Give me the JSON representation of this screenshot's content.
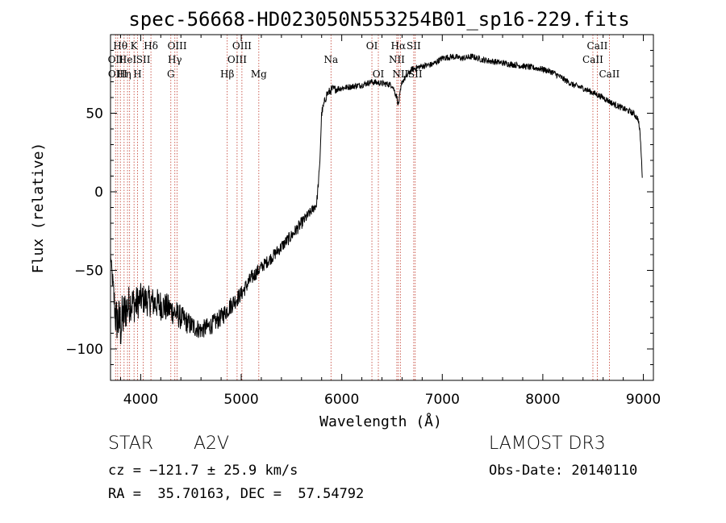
{
  "chart_data": {
    "type": "line",
    "title": "spec-56668-HD023050N553254B01_sp16-229.fits",
    "xlabel": "Wavelength (Å)",
    "ylabel": "Flux (relative)",
    "xlim": [
      3700,
      9100
    ],
    "ylim": [
      -120,
      100
    ],
    "xticks": [
      4000,
      5000,
      6000,
      7000,
      8000,
      9000
    ],
    "yticks": [
      -100,
      -50,
      0,
      50
    ],
    "xtick_labels": [
      "4000",
      "5000",
      "6000",
      "7000",
      "8000",
      "9000"
    ],
    "ytick_labels": [
      "−100",
      "−50",
      "0",
      "50"
    ],
    "grid": false,
    "series": [
      {
        "name": "spectrum",
        "x": [
          3700,
          3750,
          3800,
          3850,
          3900,
          3950,
          4000,
          4100,
          4200,
          4300,
          4400,
          4500,
          4600,
          4700,
          4800,
          4900,
          5000,
          5100,
          5200,
          5300,
          5400,
          5500,
          5600,
          5700,
          5750,
          5780,
          5800,
          5850,
          5900,
          6000,
          6100,
          6200,
          6300,
          6400,
          6500,
          6550,
          6563,
          6600,
          6700,
          6800,
          6900,
          7000,
          7100,
          7200,
          7300,
          7400,
          7500,
          7600,
          7700,
          7800,
          7900,
          8000,
          8100,
          8200,
          8300,
          8400,
          8500,
          8600,
          8700,
          8800,
          8900,
          8950,
          8970,
          8990
        ],
        "y": [
          -40,
          -80,
          -85,
          -75,
          -70,
          -72,
          -68,
          -70,
          -72,
          -75,
          -80,
          -85,
          -88,
          -85,
          -80,
          -72,
          -65,
          -55,
          -48,
          -42,
          -35,
          -28,
          -20,
          -12,
          -8,
          15,
          50,
          62,
          65,
          66,
          67,
          68,
          70,
          69,
          68,
          60,
          55,
          70,
          78,
          80,
          81,
          85,
          86,
          85,
          86,
          84,
          83,
          82,
          81,
          80,
          79,
          78,
          76,
          72,
          68,
          66,
          63,
          60,
          56,
          53,
          50,
          46,
          35,
          10
        ],
        "noise": [
          2,
          14,
          18,
          14,
          12,
          12,
          10,
          10,
          10,
          9,
          8,
          7,
          6,
          6,
          6,
          6,
          5,
          5,
          4,
          4,
          4,
          4,
          4,
          3,
          3,
          3,
          3,
          3,
          3,
          2,
          2,
          2,
          2,
          2,
          2,
          2,
          2,
          2,
          2,
          2,
          2,
          2,
          2,
          2,
          2,
          2,
          2,
          2,
          2,
          2,
          2,
          2,
          2,
          2,
          2,
          2,
          2,
          2,
          2,
          2,
          2,
          2,
          2,
          2
        ]
      }
    ],
    "lines": [
      {
        "w": 3750,
        "label": "OII",
        "row": 1
      },
      {
        "w": 3771,
        "label": "OIII",
        "row": 2
      },
      {
        "w": 3798,
        "label": "Hθ",
        "row": 0
      },
      {
        "w": 3835,
        "label": "Hη",
        "row": 2
      },
      {
        "w": 3869,
        "label": "HeI",
        "row": 1
      },
      {
        "w": 3890,
        "label": "",
        "row": -1
      },
      {
        "w": 3934,
        "label": "K",
        "row": 0
      },
      {
        "w": 3969,
        "label": "H",
        "row": 2
      },
      {
        "w": 4026,
        "label": "SII",
        "row": 1
      },
      {
        "w": 4102,
        "label": "Hδ",
        "row": 0
      },
      {
        "w": 4300,
        "label": "G",
        "row": 2
      },
      {
        "w": 4340,
        "label": "Hγ",
        "row": 1
      },
      {
        "w": 4363,
        "label": "OIII",
        "row": 0
      },
      {
        "w": 4861,
        "label": "Hβ",
        "row": 2
      },
      {
        "w": 4959,
        "label": "OIII",
        "row": 1
      },
      {
        "w": 5007,
        "label": "OIII",
        "row": 0
      },
      {
        "w": 5175,
        "label": "Mg",
        "row": 2
      },
      {
        "w": 5893,
        "label": "Na",
        "row": 1
      },
      {
        "w": 6300,
        "label": "OI",
        "row": 0
      },
      {
        "w": 6364,
        "label": "OI",
        "row": 2
      },
      {
        "w": 6548,
        "label": "NII",
        "row": 1
      },
      {
        "w": 6563,
        "label": "Hα",
        "row": 0
      },
      {
        "w": 6583,
        "label": "NII",
        "row": 2
      },
      {
        "w": 6716,
        "label": "SII",
        "row": 0
      },
      {
        "w": 6731,
        "label": "SII",
        "row": 2
      },
      {
        "w": 8498,
        "label": "CaII",
        "row": 1
      },
      {
        "w": 8542,
        "label": "CaII",
        "row": 0
      },
      {
        "w": 8662,
        "label": "CaII",
        "row": 2
      }
    ]
  },
  "info": {
    "object_type": "STAR",
    "subclass": "A2V",
    "survey": "LAMOST DR3",
    "redshift": "cz = −121.7 ± 25.9 km/s",
    "obs_date": "Obs-Date: 20140110",
    "coords": "RA =  35.70163, DEC =  57.54792"
  }
}
